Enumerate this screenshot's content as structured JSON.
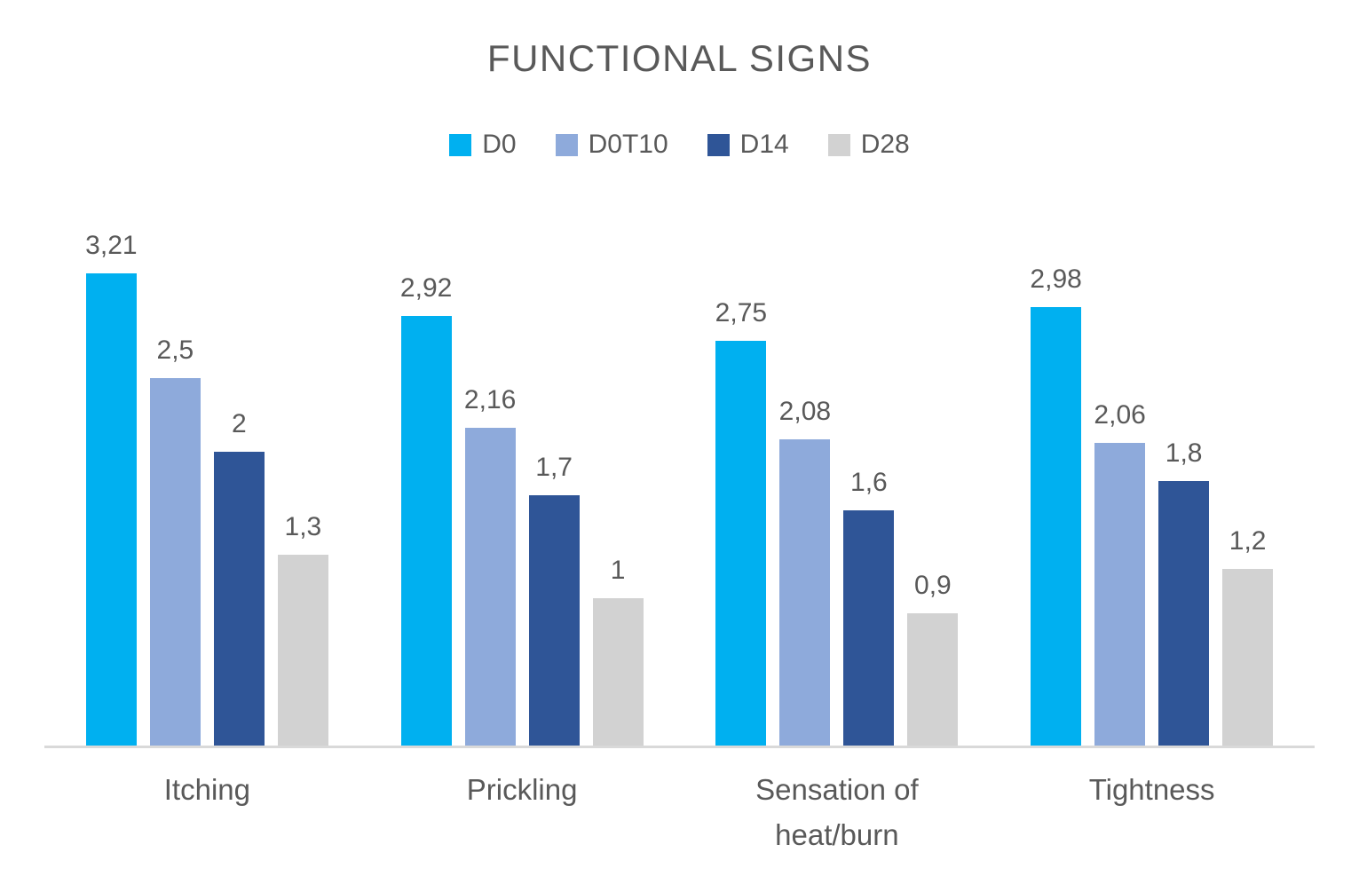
{
  "chart_data": {
    "type": "bar",
    "title": "FUNCTIONAL SIGNS",
    "categories": [
      "Itching",
      "Prickling",
      "Sensation of heat/burn",
      "Tightness"
    ],
    "series": [
      {
        "name": "D0",
        "color": "#00B0F0",
        "values": [
          3.21,
          2.92,
          2.75,
          2.98
        ],
        "labels": [
          "3,21",
          "2,92",
          "2,75",
          "2,98"
        ]
      },
      {
        "name": "D0T10",
        "color": "#8EAADB",
        "values": [
          2.5,
          2.16,
          2.08,
          2.06
        ],
        "labels": [
          "2,5",
          "2,16",
          "2,08",
          "2,06"
        ]
      },
      {
        "name": "D14",
        "color": "#2F5597",
        "values": [
          2,
          1.7,
          1.6,
          1.8
        ],
        "labels": [
          "2",
          "1,7",
          "1,6",
          "1,8"
        ]
      },
      {
        "name": "D28",
        "color": "#D2D2D2",
        "values": [
          1.3,
          1,
          0.9,
          1.2
        ],
        "labels": [
          "1,3",
          "1",
          "0,9",
          "1,2"
        ]
      }
    ],
    "ylim": [
      0,
      3.5
    ],
    "grid": false,
    "y_axis_visible": false,
    "legend_position": "top",
    "value_label_decimal_separator": ",",
    "colors": {
      "text": "#595959",
      "axis_line": "#d9d9d9",
      "background": "#ffffff"
    }
  }
}
